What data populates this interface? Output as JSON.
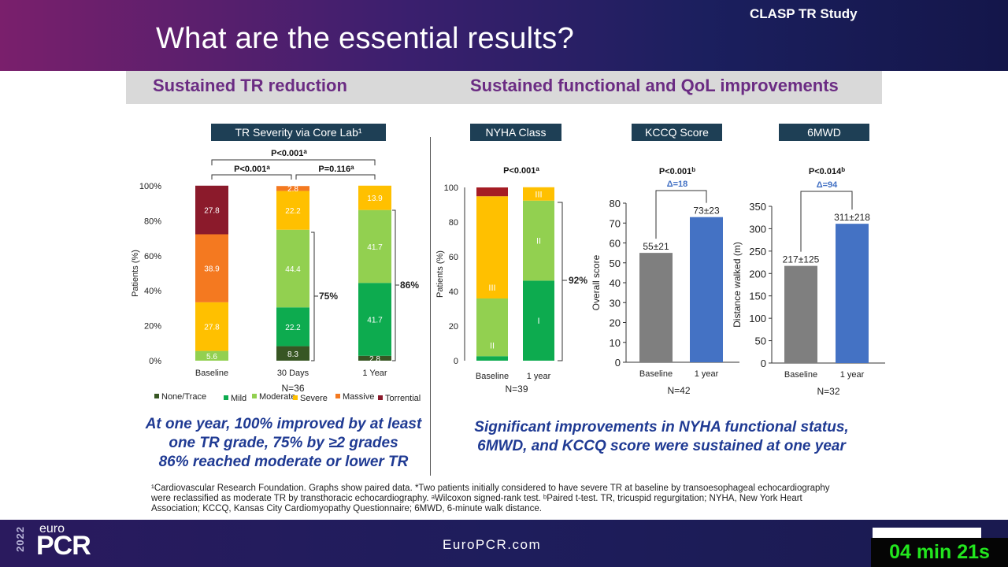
{
  "header": {
    "title": "What are the essential results?",
    "study": "CLASP TR Study"
  },
  "sections": {
    "left": "Sustained TR reduction",
    "right": "Sustained functional and QoL improvements"
  },
  "takeaways": {
    "left": [
      "At one year, 100% improved by at least",
      "one TR grade, 75% by ≥2 grades",
      "86% reached moderate or lower TR"
    ],
    "right": [
      "Significant improvements in NYHA functional status,",
      "6MWD, and KCCQ score were sustained at one year"
    ]
  },
  "footnote": [
    "¹Cardiovascular Research Foundation. Graphs show paired data. *Two patients initially considered to have severe TR at baseline by transoesophageal echocardiography",
    "were reclassified as moderate TR by transthoracic echocardiography. ᵃWilcoxon signed-rank test. ᵇPaired t-test. TR, tricuspid regurgitation; NYHA, New York Heart",
    "Association; KCCQ, Kansas City Cardiomyopathy Questionnaire; 6MWD, 6-minute walk distance."
  ],
  "footer": {
    "year": "2022",
    "euro": "euro",
    "pcr": "PCR",
    "site": "EuroPCR.com",
    "timer": "04 min 21s"
  },
  "chart_data": [
    {
      "type": "bar",
      "stacked": true,
      "title": "TR Severity via Core Lab¹",
      "categories": [
        "Baseline",
        "30 Days",
        "1 Year"
      ],
      "series": [
        {
          "name": "None/Trace",
          "color": "#375623",
          "values": [
            0,
            8.3,
            2.8
          ],
          "labels": [
            "",
            "8.3",
            "2.8"
          ]
        },
        {
          "name": "Mild",
          "color": "#0dab4f",
          "values": [
            0,
            22.2,
            41.7
          ],
          "labels": [
            "",
            "22.2",
            "41.7"
          ]
        },
        {
          "name": "Moderate",
          "color": "#92d050",
          "values": [
            5.6,
            44.4,
            41.7
          ],
          "labels": [
            "5.6",
            "44.4",
            "41.7"
          ]
        },
        {
          "name": "Severe",
          "color": "#ffc000",
          "values": [
            27.8,
            22.2,
            13.9
          ],
          "labels": [
            "27.8",
            "22.2",
            "13.9"
          ]
        },
        {
          "name": "Massive",
          "color": "#f47920",
          "values": [
            38.9,
            2.8,
            0
          ],
          "labels": [
            "38.9",
            "2.8",
            ""
          ]
        },
        {
          "name": "Torrential",
          "color": "#8b1a2b",
          "values": [
            27.8,
            0,
            0
          ],
          "labels": [
            "27.8",
            "",
            ""
          ]
        }
      ],
      "ylabel": "Patients (%)",
      "yticks": [
        "0%",
        "20%",
        "40%",
        "60%",
        "80%",
        "100%"
      ],
      "ylim": [
        0,
        100
      ],
      "n": "N=36",
      "pvalues": {
        "overall": "P<0.001",
        "baseline_30d": "P<0.001",
        "30d_1y": "P=0.116",
        "sup": "a"
      },
      "bracket_labels": [
        "75%",
        "86%"
      ]
    },
    {
      "type": "bar",
      "stacked": true,
      "title": "NYHA Class",
      "categories": [
        "Baseline",
        "1 year"
      ],
      "series": [
        {
          "name": "I",
          "color": "#0dab4f",
          "values": [
            2.6,
            46.2
          ]
        },
        {
          "name": "II",
          "color": "#92d050",
          "values": [
            33.3,
            46.2
          ]
        },
        {
          "name": "III",
          "color": "#ffc000",
          "values": [
            59.0,
            7.7
          ]
        },
        {
          "name": "IV",
          "color": "#a51c24",
          "values": [
            5.1,
            0
          ]
        }
      ],
      "ylabel": "Patients (%)",
      "yticks": [
        "0",
        "20",
        "40",
        "60",
        "80",
        "100"
      ],
      "ylim": [
        0,
        100
      ],
      "n": "N=39",
      "pvalue": "P<0.001",
      "sup": "a",
      "bracket_label": "92%"
    },
    {
      "type": "bar",
      "title": "KCCQ Score",
      "categories": [
        "Baseline",
        "1 year"
      ],
      "values": [
        55,
        73
      ],
      "labels": [
        "55±21",
        "73±23"
      ],
      "colors": [
        "#7f7f7f",
        "#4472c4"
      ],
      "ylabel": "Overall score",
      "yticks": [
        "0",
        "10",
        "20",
        "30",
        "40",
        "50",
        "60",
        "70",
        "80"
      ],
      "ylim": [
        0,
        80
      ],
      "n": "N=42",
      "pvalue": "P<0.001",
      "sup": "b",
      "delta": "Δ=18"
    },
    {
      "type": "bar",
      "title": "6MWD",
      "categories": [
        "Baseline",
        "1 year"
      ],
      "values": [
        217,
        311
      ],
      "labels": [
        "217±125",
        "311±218"
      ],
      "colors": [
        "#7f7f7f",
        "#4472c4"
      ],
      "ylabel": "Distance walked (m)",
      "yticks": [
        "0",
        "50",
        "100",
        "150",
        "200",
        "250",
        "300",
        "350"
      ],
      "ylim": [
        0,
        350
      ],
      "n": "N=32",
      "pvalue": "P<0.014",
      "sup": "b",
      "delta": "Δ=94"
    }
  ]
}
